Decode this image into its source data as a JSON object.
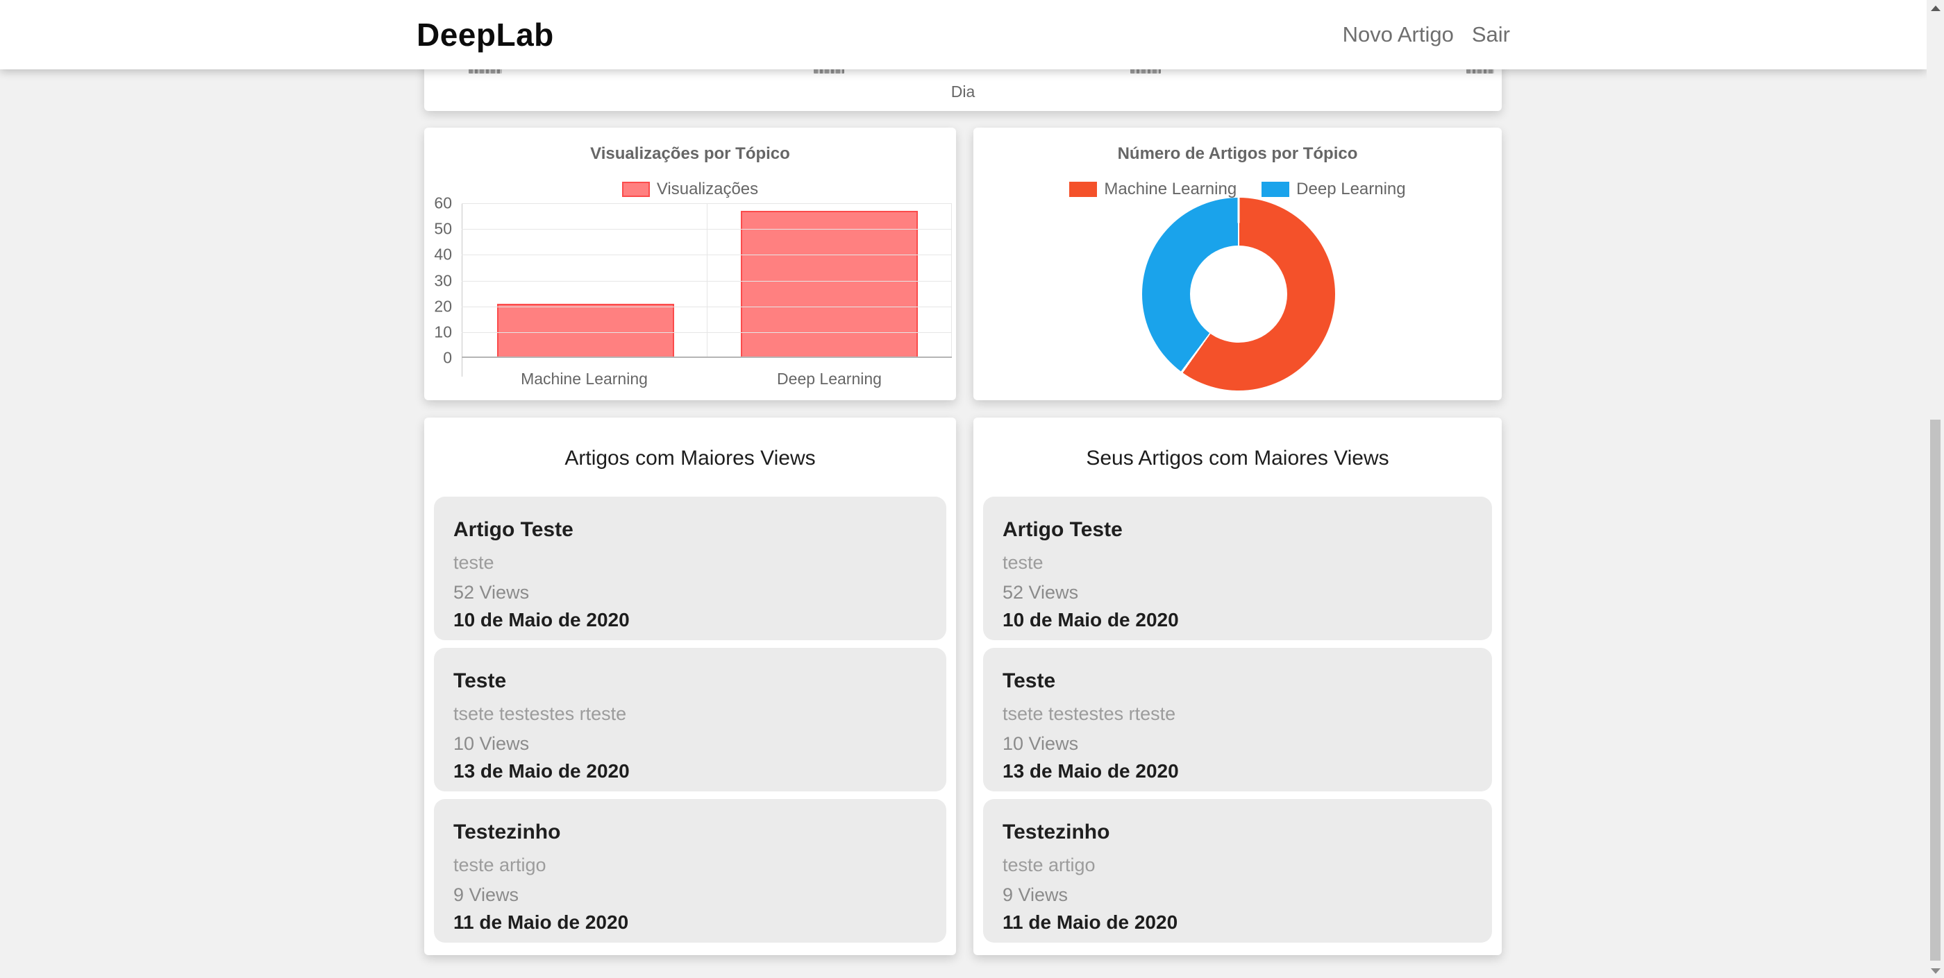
{
  "navbar": {
    "brand": "DeepLab",
    "links": [
      {
        "label": "Novo Artigo"
      },
      {
        "label": "Sair"
      }
    ]
  },
  "colors": {
    "bar_fill": "#ff8080",
    "bar_border": "#fb4c4c",
    "donut_orange": "#f4512a",
    "donut_blue": "#1aa3eb",
    "chart_text": "#666666",
    "page_background": "#f1f1f1",
    "tile_background": "#ebebeb"
  },
  "chart_data": [
    {
      "type": "bar",
      "title": "Visualizações por Tópico",
      "legend": [
        "Visualizações"
      ],
      "legend_position": "top",
      "categories": [
        "Machine Learning",
        "Deep Learning"
      ],
      "values": [
        21,
        57
      ],
      "xlabel": "",
      "ylabel": "",
      "ylim": [
        0,
        60
      ],
      "ytick_step": 10,
      "grid": true,
      "bar_fill": "#ff8080",
      "bar_border": "#fb4c4c"
    },
    {
      "type": "pie",
      "subtype": "doughnut",
      "title": "Número de Artigos por Tópico",
      "legend_position": "top",
      "labels": [
        "Machine Learning",
        "Deep Learning"
      ],
      "values": [
        3,
        2
      ],
      "colors": [
        "#f4512a",
        "#1aa3eb"
      ],
      "start_angle_deg": 0,
      "cutout_percent": 50
    },
    {
      "type": "line",
      "title": "",
      "xlabel": "Dia",
      "note": "chart cropped by navbar; only bottom edge with x-axis label visible"
    }
  ],
  "lists": [
    {
      "title": "Artigos com Maiores Views",
      "items": [
        {
          "title": "Artigo Teste",
          "subtitle": "teste",
          "views": "52 Views",
          "date": "10 de Maio de 2020"
        },
        {
          "title": "Teste",
          "subtitle": "tsete testestes rteste",
          "views": "10 Views",
          "date": "13 de Maio de 2020"
        },
        {
          "title": "Testezinho",
          "subtitle": "teste artigo",
          "views": "9 Views",
          "date": "11 de Maio de 2020"
        }
      ]
    },
    {
      "title": "Seus Artigos com Maiores Views",
      "items": [
        {
          "title": "Artigo Teste",
          "subtitle": "teste",
          "views": "52 Views",
          "date": "10 de Maio de 2020"
        },
        {
          "title": "Teste",
          "subtitle": "tsete testestes rteste",
          "views": "10 Views",
          "date": "13 de Maio de 2020"
        },
        {
          "title": "Testezinho",
          "subtitle": "teste artigo",
          "views": "9 Views",
          "date": "11 de Maio de 2020"
        }
      ]
    }
  ]
}
